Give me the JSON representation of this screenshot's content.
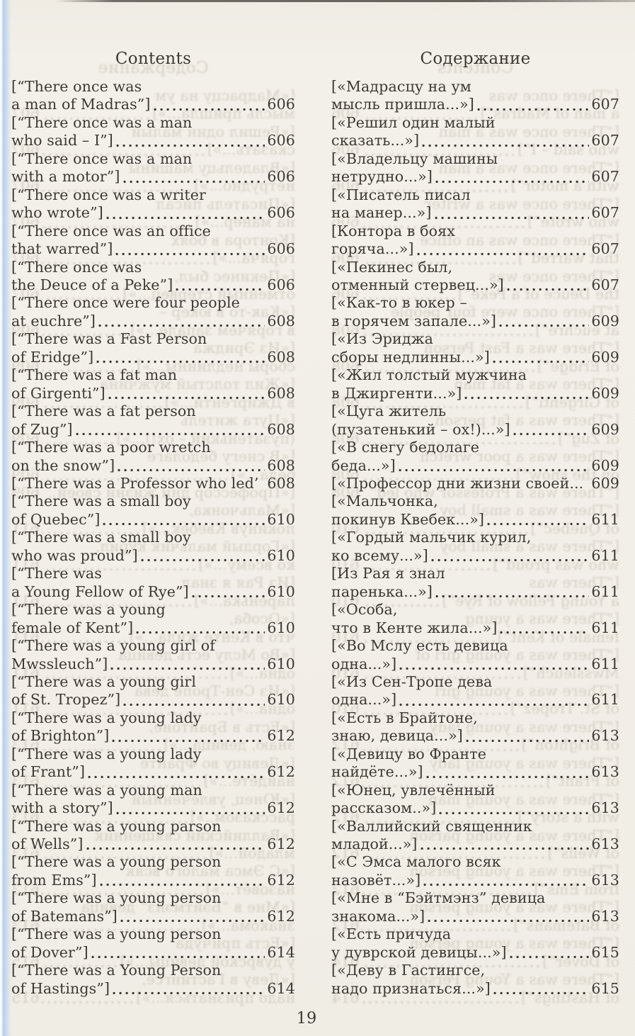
{
  "page_number": "19",
  "colors": {
    "paper": "#f2efe8",
    "ink": "#3d3a34",
    "scan_edge_blue": "#b9cfe9"
  },
  "left_column": {
    "header": "Contents",
    "entries": [
      {
        "lines": [
          "[“There once was",
          "a man of Madras”]"
        ],
        "page": "606",
        "leader": "dots"
      },
      {
        "lines": [
          "[“There once was a man",
          "who said – I”] "
        ],
        "page": "606",
        "leader": "dots"
      },
      {
        "lines": [
          "[“There once was a man",
          "with a motor”]"
        ],
        "page": "606",
        "leader": "dots"
      },
      {
        "lines": [
          "[“There once was a writer",
          "who wrote”]"
        ],
        "page": "606",
        "leader": "dots"
      },
      {
        "lines": [
          "[“There once was an office",
          "that warred”]"
        ],
        "page": "606",
        "leader": "dots"
      },
      {
        "lines": [
          "[“There once was",
          "the Deuce of a Peke”]"
        ],
        "page": "606",
        "leader": "dots"
      },
      {
        "lines": [
          "[“There once were four people",
          "at euchre”] "
        ],
        "page": "608",
        "leader": "dots"
      },
      {
        "lines": [
          "[“There was a Fast Person",
          "of Eridge”] "
        ],
        "page": "608",
        "leader": "dots"
      },
      {
        "lines": [
          "[“There was a fat man",
          "of Girgenti”]"
        ],
        "page": "608",
        "leader": "dots"
      },
      {
        "lines": [
          "[“There was a fat person",
          "of Zug”] "
        ],
        "page": "608",
        "leader": "dots"
      },
      {
        "lines": [
          "[“There was a poor wretch",
          "on the snow”] "
        ],
        "page": "608",
        "leader": "dots"
      },
      {
        "lines": [
          "[“There was a Professor who led”] ."
        ],
        "page": "608",
        "leader": "none"
      },
      {
        "lines": [
          "[“There was a small boy",
          "of Quebec”] "
        ],
        "page": "610",
        "leader": "dots"
      },
      {
        "lines": [
          "[“There was a small boy",
          "who was proud”] "
        ],
        "page": "610",
        "leader": "dots"
      },
      {
        "lines": [
          "[“There was",
          "a Young Fellow of Rye”] "
        ],
        "page": "610",
        "leader": "dots"
      },
      {
        "lines": [
          "[“There was a young",
          "female of Kent”]"
        ],
        "page": "610",
        "leader": "dots"
      },
      {
        "lines": [
          "[“There was a young girl of",
          "Mwssleuch”]"
        ],
        "page": "610",
        "leader": "dots"
      },
      {
        "lines": [
          "[“There was a young girl",
          "of St. Tropez”] "
        ],
        "page": "610",
        "leader": "dots"
      },
      {
        "lines": [
          "[“There was a young lady",
          "of Brighton”] "
        ],
        "page": "612",
        "leader": "dots"
      },
      {
        "lines": [
          "[“There was a young lady",
          "of Frant”] "
        ],
        "page": "612",
        "leader": "dots"
      },
      {
        "lines": [
          "[“There was a young man",
          "with a story”]"
        ],
        "page": "612",
        "leader": "dots"
      },
      {
        "lines": [
          "[“There was a young parson",
          "of Wells”]"
        ],
        "page": "612",
        "leader": "dots"
      },
      {
        "lines": [
          "[“There was a young person",
          "from Ems”]"
        ],
        "page": "612",
        "leader": "dots"
      },
      {
        "lines": [
          "[“There was a young person",
          "of Batemans”] "
        ],
        "page": "612",
        "leader": "dots"
      },
      {
        "lines": [
          "[“There was a young person",
          "of Dover”]"
        ],
        "page": "614",
        "leader": "dots"
      },
      {
        "lines": [
          "[“There was a Young Person",
          "of Hastings”] "
        ],
        "page": "614",
        "leader": "dots"
      }
    ]
  },
  "right_column": {
    "header": "Содержание",
    "entries": [
      {
        "lines": [
          "[«Мадрасцу на ум",
          "мысль пришла...»] "
        ],
        "page": "607",
        "leader": "dots"
      },
      {
        "lines": [
          "[«Решил один малый",
          "сказать...»] "
        ],
        "page": "607",
        "leader": "dots"
      },
      {
        "lines": [
          "[«Владельцу машины",
          "нетрудно...»]"
        ],
        "page": "607",
        "leader": "dots"
      },
      {
        "lines": [
          "[«Писатель писал",
          "на манер...»]"
        ],
        "page": "607",
        "leader": "dots"
      },
      {
        "lines": [
          "[Контора в боях",
          "горяча...»] "
        ],
        "page": "607",
        "leader": "dots"
      },
      {
        "lines": [
          "[«Пекинес был,",
          "отменный стервец...»]"
        ],
        "page": "607",
        "leader": "dots"
      },
      {
        "lines": [
          "[«Как-то в юкер –",
          "в горячем запале...»] "
        ],
        "page": "609",
        "leader": "dots"
      },
      {
        "lines": [
          "[«Из Эриджа",
          "сборы недлинны...»]"
        ],
        "page": "609",
        "leader": "dots"
      },
      {
        "lines": [
          "[«Жил толстый мужчина",
          "в Джиргенти...»] "
        ],
        "page": "609",
        "leader": "dots"
      },
      {
        "lines": [
          "[«Цуга житель",
          "(пузатенький – ох!)...»] "
        ],
        "page": "609",
        "leader": "dots"
      },
      {
        "lines": [
          "[«В снегу бедолаге",
          "беда...»] "
        ],
        "page": "609",
        "leader": "dots"
      },
      {
        "lines": [
          "[«Профессор дни жизни своей...»]"
        ],
        "page": "609",
        "leader": "none"
      },
      {
        "lines": [
          "[«Мальчонка,",
          "покинув Квебек...»]"
        ],
        "page": "611",
        "leader": "dots"
      },
      {
        "lines": [
          "[«Гордый мальчик курил,",
          "ко всему...»] "
        ],
        "page": "611",
        "leader": "dots"
      },
      {
        "lines": [
          "[Из Рая я знал",
          "паренька...»] "
        ],
        "page": "611",
        "leader": "dots"
      },
      {
        "lines": [
          "[«Особа,",
          "что в Кенте жила...»]"
        ],
        "page": "611",
        "leader": "dots"
      },
      {
        "lines": [
          "[«Во Мслу есть девица",
          "одна...»]"
        ],
        "page": "611",
        "leader": "dots"
      },
      {
        "lines": [
          "[«Из Сен-Тропе дева",
          "одна...»]"
        ],
        "page": "611",
        "leader": "dots"
      },
      {
        "lines": [
          "[«Есть в Брайтоне,",
          "знаю, девица...»]"
        ],
        "page": "613",
        "leader": "dots"
      },
      {
        "lines": [
          "[«Девицу во Франте",
          "найдёте...»] "
        ],
        "page": "613",
        "leader": "dots"
      },
      {
        "lines": [
          "[«Юнец, увлечённый",
          "рассказом..»]"
        ],
        "page": "613",
        "leader": "dots"
      },
      {
        "lines": [
          "[«Валлийский священник",
          "младой...»]"
        ],
        "page": "613",
        "leader": "dots"
      },
      {
        "lines": [
          "[«С Эмса малого всяк",
          "назовёт...»] "
        ],
        "page": "613",
        "leader": "dots"
      },
      {
        "lines": [
          "[«Мне в “Бэйтмэнз” девица",
          "знакома...»]"
        ],
        "page": "613",
        "leader": "dots"
      },
      {
        "lines": [
          "[«Есть причуда",
          "у дуврской девицы...»]"
        ],
        "page": "615",
        "leader": "dots"
      },
      {
        "lines": [
          "[«Деву в Гастингсе,",
          "надо признаться...»]"
        ],
        "page": "615",
        "leader": "dots"
      }
    ]
  }
}
